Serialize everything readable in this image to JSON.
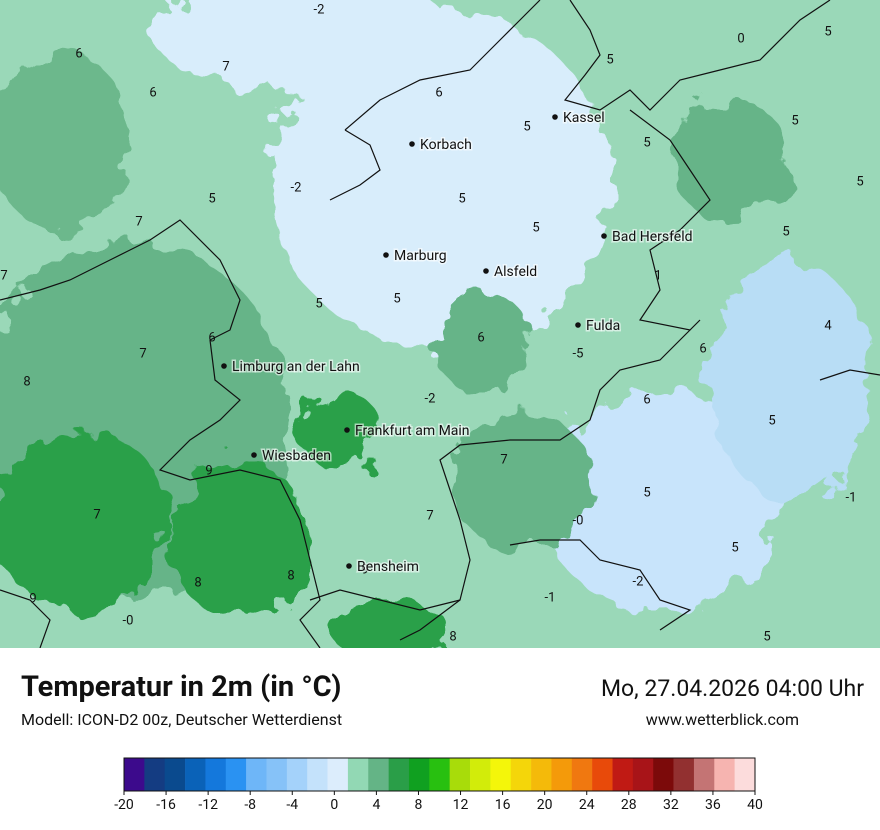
{
  "title": "Temperatur in 2m (in °C)",
  "subtitle": "Modell: ICON-D2 00z, Deutscher Wetterdienst",
  "datetime": "Mo, 27.04.2026 04:00 Uhr",
  "website": "www.wetterblick.com",
  "cities": [
    "Kassel",
    "Korbach",
    "Bad Hersfeld",
    "Marburg",
    "Alsfeld",
    "Fulda",
    "Limburg an der Lahn",
    "Frankfurt am Main",
    "Wiesbaden",
    "Bensheim"
  ],
  "map_labels": [
    "-2",
    "0",
    "5",
    "6",
    "7",
    "5",
    "6",
    "6",
    "5",
    "5",
    "5",
    "-2",
    "5",
    "5",
    "5",
    "7",
    "5",
    "5",
    "7",
    "1",
    "5",
    "5",
    "6",
    "6",
    "4",
    "7",
    "-5",
    "6",
    "8",
    "-2",
    "6",
    "5",
    "7",
    "9",
    "5",
    "-1",
    "7",
    "7",
    "-0",
    "5",
    "8",
    "8",
    "9",
    "-2",
    "9",
    "-1",
    "-0",
    "5",
    "8"
  ],
  "colorbar": {
    "ticks": [
      -20,
      -16,
      -12,
      -8,
      -4,
      0,
      4,
      8,
      12,
      16,
      20,
      24,
      28,
      32,
      36,
      40
    ],
    "colors": [
      "#3c0a8c",
      "#143c82",
      "#0a4a8e",
      "#0a62b8",
      "#1478dc",
      "#2a92f2",
      "#6eb6f8",
      "#86c2f8",
      "#a4d2fa",
      "#c4e2fb",
      "#dcedfc",
      "#92d8b4",
      "#64b486",
      "#2a9e48",
      "#10a020",
      "#28c010",
      "#a8dc0a",
      "#d2ec0a",
      "#f4f60a",
      "#f4d60a",
      "#f4ba0a",
      "#f49a0a",
      "#f07810",
      "#e84a0a",
      "#c01a14",
      "#a81418",
      "#7c0a0a",
      "#923030",
      "#c47474",
      "#f6b4b0",
      "#fcdcdc"
    ]
  }
}
